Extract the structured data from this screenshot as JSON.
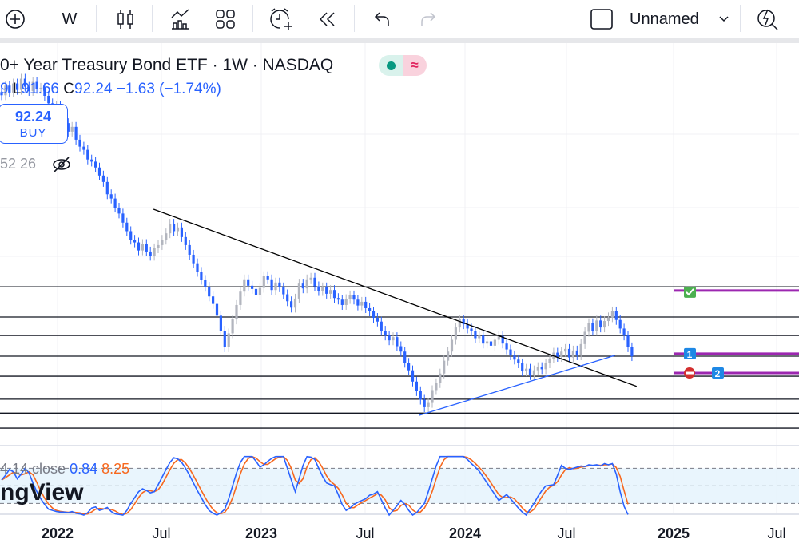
{
  "toolbar": {
    "interval": "W",
    "layout_name": "Unnamed",
    "icons": [
      "plus-circle-icon",
      "candles-icon",
      "indicators-icon",
      "layouts-icon",
      "alert-icon",
      "replay-icon",
      "undo-icon",
      "redo-icon",
      "checkbox-icon",
      "chevron-down-icon",
      "quick-search-icon"
    ]
  },
  "legend": {
    "title": "0+ Year Treasury Bond ETF · 1W · NASDAQ",
    "ohlc_prefix": "9 ",
    "low_label": "L",
    "low": "91.66",
    "close_label": "C",
    "close": "92.24",
    "change": "−1.63 (−1.74%)",
    "buy_price": "92.24",
    "buy_label": "BUY",
    "volume": "52 26",
    "status_colors": {
      "market": "#089981",
      "indicator": "#e0245e"
    }
  },
  "stoch": {
    "label": "4 14 close",
    "k": "0.84",
    "d": "8.25",
    "k_color": "#2962ff",
    "d_color": "#f7681e"
  },
  "watermark": "ngView",
  "x_labels": [
    {
      "text": "2022",
      "year": true
    },
    {
      "text": "Jul",
      "year": false
    },
    {
      "text": "2023",
      "year": true
    },
    {
      "text": "Jul",
      "year": false
    },
    {
      "text": "2024",
      "year": true
    },
    {
      "text": "Jul",
      "year": false
    },
    {
      "text": "2025",
      "year": true
    },
    {
      "text": "Jul",
      "year": false
    }
  ],
  "chart_data": {
    "type": "candlestick",
    "interval": "1W",
    "colors": {
      "up": "#b2b5be",
      "down": "#2962ff"
    },
    "closes": [
      141.0,
      142.8,
      141.5,
      143.2,
      142.0,
      144.1,
      142.6,
      141.8,
      143.5,
      142.2,
      142.4,
      140.9,
      139.5,
      138.2,
      139.0,
      136.5,
      135.8,
      134.2,
      135.1,
      132.7,
      131.4,
      130.8,
      129.0,
      128.6,
      127.5,
      126.0,
      124.8,
      122.5,
      121.7,
      120.0,
      118.9,
      117.2,
      115.6,
      114.0,
      113.5,
      112.0,
      113.2,
      111.8,
      111.0,
      112.4,
      113.0,
      114.0,
      115.2,
      117.0,
      115.6,
      116.3,
      114.5,
      113.0,
      111.2,
      109.6,
      108.0,
      106.5,
      105.2,
      103.4,
      102.0,
      99.8,
      97.0,
      93.9,
      96.5,
      99.1,
      101.8,
      104.3,
      106.6,
      105.4,
      104.8,
      103.6,
      105.0,
      107.2,
      106.6,
      104.6,
      106.0,
      105.1,
      103.8,
      102.5,
      101.3,
      103.0,
      105.8,
      104.9,
      106.6,
      106.9,
      105.3,
      104.4,
      105.1,
      103.9,
      104.6,
      103.1,
      102.8,
      101.8,
      102.9,
      103.6,
      102.8,
      101.7,
      102.4,
      101.2,
      100.6,
      99.4,
      98.7,
      97.0,
      96.1,
      95.2,
      95.8,
      94.1,
      93.1,
      91.0,
      89.6,
      87.5,
      85.7,
      84.1,
      82.7,
      83.5,
      85.9,
      87.2,
      89.0,
      91.4,
      93.1,
      95.3,
      97.6,
      99.1,
      98.2,
      97.4,
      96.9,
      95.6,
      96.1,
      94.6,
      95.0,
      94.2,
      95.3,
      96.0,
      94.6,
      93.5,
      92.4,
      91.6,
      90.9,
      89.4,
      89.9,
      88.7,
      89.6,
      90.2,
      89.8,
      90.9,
      91.8,
      92.9,
      92.1,
      93.1,
      93.6,
      92.0,
      93.3,
      92.4,
      94.5,
      96.8,
      98.4,
      97.0,
      98.9,
      97.6,
      98.8,
      99.5,
      100.6,
      99.0,
      97.4,
      96.1,
      93.9,
      92.24
    ],
    "horizontal_levels": [
      105.2,
      99.55,
      96.1,
      92.24,
      88.5,
      84.2,
      81.6,
      78.8
    ],
    "purple_levels": [
      {
        "price": 104.5,
        "marker": "check"
      },
      {
        "price": 92.7,
        "marker": "1"
      },
      {
        "price": 89.1,
        "marker": "stop",
        "marker2": "2"
      }
    ],
    "trendlines": [
      {
        "color": "#000000",
        "from": [
          38.8,
          119.7
        ],
        "to": [
          162.2,
          86.6
        ]
      },
      {
        "color": "#2962ff",
        "from": [
          106.7,
          81.2
        ],
        "to": [
          156.7,
          92.4
        ]
      }
    ],
    "stochastic_k": [
      60,
      68,
      78,
      74,
      62,
      70,
      80,
      72,
      55,
      40,
      28,
      18,
      10,
      8,
      6,
      5,
      5,
      4,
      6,
      3,
      2,
      0,
      4,
      12,
      14,
      8,
      10,
      13,
      6,
      2,
      1,
      0,
      8,
      20,
      30,
      40,
      45,
      42,
      38,
      40,
      52,
      65,
      78,
      90,
      98,
      96,
      90,
      80,
      68,
      55,
      42,
      30,
      18,
      8,
      3,
      0,
      4,
      10,
      28,
      50,
      72,
      90,
      100,
      100,
      100,
      92,
      82,
      86,
      92,
      97,
      100,
      100,
      100,
      80,
      60,
      40,
      62,
      85,
      100,
      99,
      95,
      80,
      66,
      55,
      52,
      50,
      35,
      18,
      8,
      12,
      18,
      22,
      25,
      28,
      34,
      36,
      40,
      26,
      12,
      0,
      8,
      16,
      25,
      18,
      8,
      0,
      4,
      12,
      20,
      40,
      62,
      84,
      100,
      100,
      100,
      100,
      100,
      100,
      100,
      95,
      88,
      82,
      75,
      65,
      55,
      45,
      35,
      25,
      30,
      35,
      28,
      20,
      12,
      5,
      0,
      10,
      20,
      32,
      42,
      50,
      51,
      52,
      68,
      85,
      80,
      78,
      80,
      82,
      84,
      83,
      86,
      85,
      86,
      84,
      88,
      86,
      88,
      70,
      40,
      15,
      0.84
    ],
    "stochastic_levels": [
      80,
      50,
      20
    ]
  }
}
